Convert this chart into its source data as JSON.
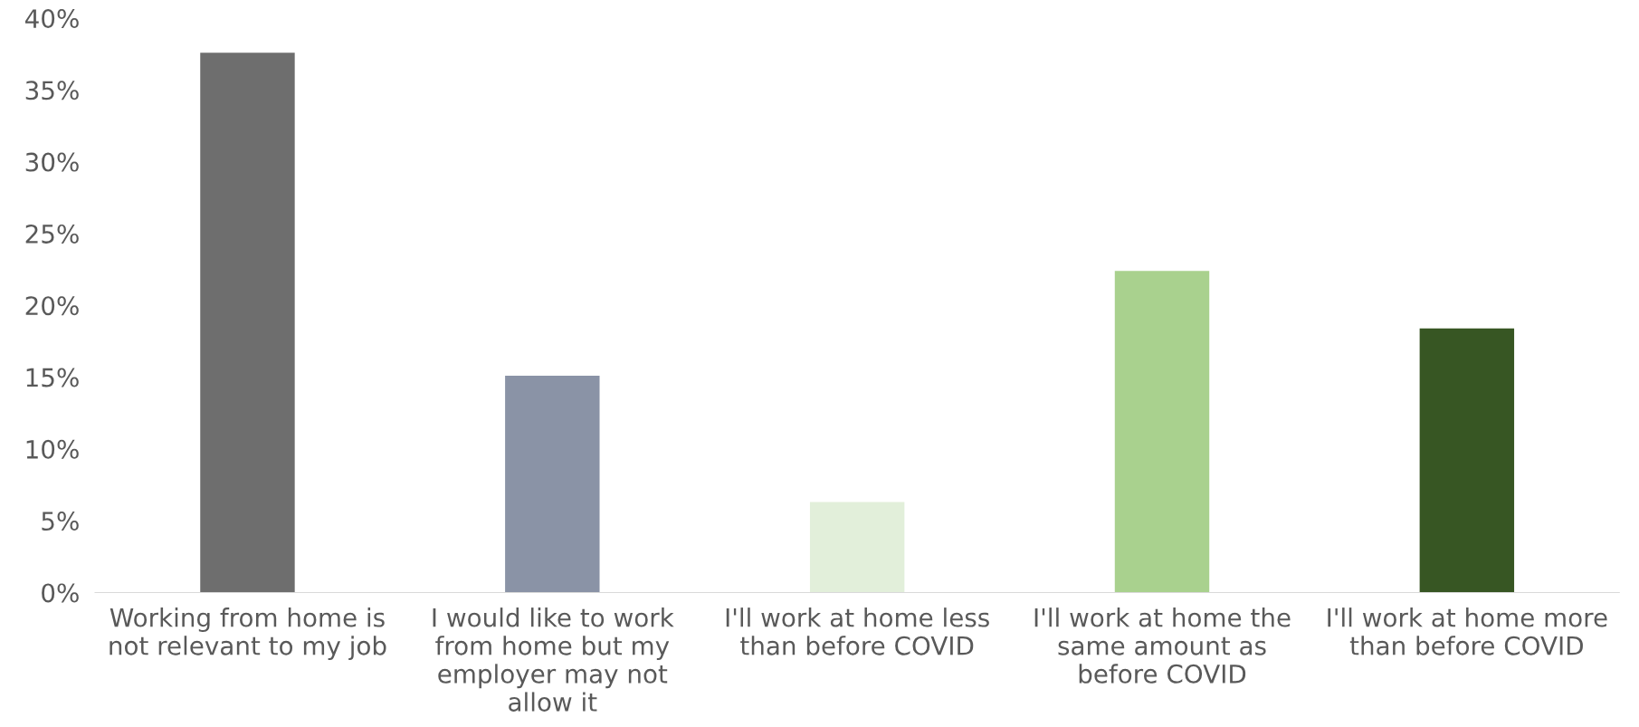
{
  "chart_data": {
    "type": "bar",
    "categories": [
      "Working from home is\nnot relevant to my job",
      "I would like to work\nfrom home but my\nemployer may not\nallow it",
      "I'll work at home less\nthan before COVID",
      "I'll work at home the\nsame amount as\nbefore COVID",
      "I'll work at home more\nthan before COVID"
    ],
    "values": [
      37.6,
      15.1,
      6.3,
      22.4,
      18.4
    ],
    "colors": [
      "#6e6e6e",
      "#8a93a6",
      "#e2efda",
      "#a9d18e",
      "#375623"
    ],
    "ylim": [
      0,
      40
    ],
    "yticks": [
      {
        "value": 0,
        "label": "0%"
      },
      {
        "value": 5,
        "label": "5%"
      },
      {
        "value": 10,
        "label": "10%"
      },
      {
        "value": 15,
        "label": "15%"
      },
      {
        "value": 20,
        "label": "20%"
      },
      {
        "value": 25,
        "label": "25%"
      },
      {
        "value": 30,
        "label": "30%"
      },
      {
        "value": 35,
        "label": "35%"
      },
      {
        "value": 40,
        "label": "40%"
      }
    ],
    "grid": false,
    "legend": false
  }
}
